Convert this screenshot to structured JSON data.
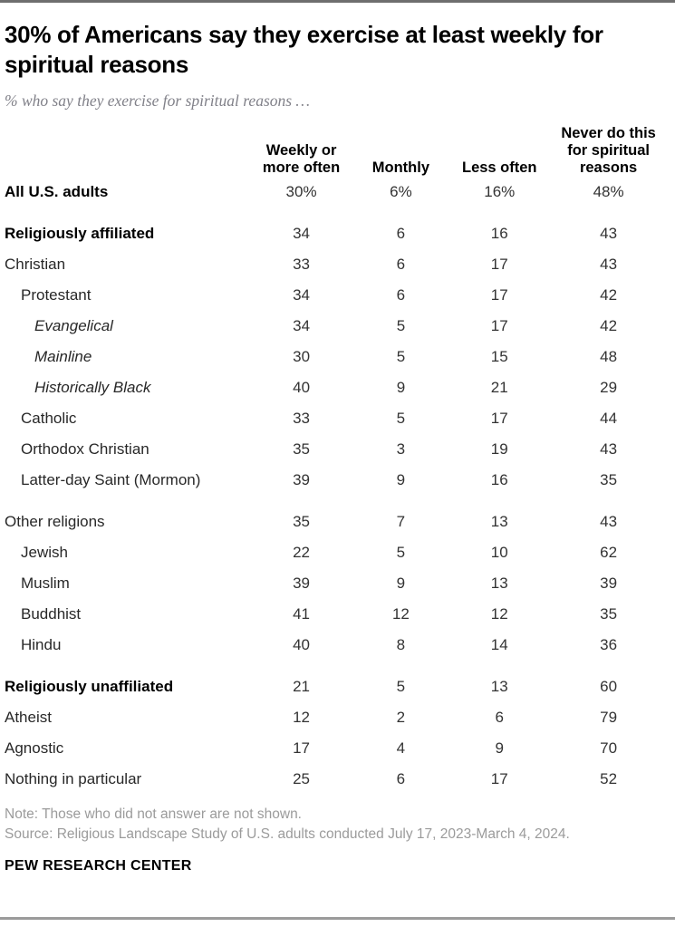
{
  "header": {
    "title": "30% of Americans say they exercise at least weekly for spiritual reasons",
    "subtitle": "% who say they exercise for spiritual reasons …"
  },
  "table": {
    "columns": [
      "Weekly or more often",
      "Monthly",
      "Less often",
      "Never do this for spiritual reasons"
    ],
    "rows": [
      {
        "label": "All U.S. adults",
        "style": "bold",
        "indent": 0,
        "gap_before": false,
        "values": [
          "30%",
          "6%",
          "16%",
          "48%"
        ]
      },
      {
        "label": "Religiously affiliated",
        "style": "bold",
        "indent": 0,
        "gap_before": true,
        "values": [
          "34",
          "6",
          "16",
          "43"
        ]
      },
      {
        "label": "Christian",
        "style": "normal",
        "indent": 0,
        "gap_before": false,
        "values": [
          "33",
          "6",
          "17",
          "43"
        ]
      },
      {
        "label": "Protestant",
        "style": "normal",
        "indent": 1,
        "gap_before": false,
        "values": [
          "34",
          "6",
          "17",
          "42"
        ]
      },
      {
        "label": "Evangelical",
        "style": "italic",
        "indent": 2,
        "gap_before": false,
        "values": [
          "34",
          "5",
          "17",
          "42"
        ]
      },
      {
        "label": "Mainline",
        "style": "italic",
        "indent": 2,
        "gap_before": false,
        "values": [
          "30",
          "5",
          "15",
          "48"
        ]
      },
      {
        "label": "Historically Black",
        "style": "italic",
        "indent": 2,
        "gap_before": false,
        "values": [
          "40",
          "9",
          "21",
          "29"
        ]
      },
      {
        "label": "Catholic",
        "style": "normal",
        "indent": 1,
        "gap_before": false,
        "values": [
          "33",
          "5",
          "17",
          "44"
        ]
      },
      {
        "label": "Orthodox Christian",
        "style": "normal",
        "indent": 1,
        "gap_before": false,
        "values": [
          "35",
          "3",
          "19",
          "43"
        ]
      },
      {
        "label": "Latter-day Saint (Mormon)",
        "style": "normal",
        "indent": 1,
        "gap_before": false,
        "values": [
          "39",
          "9",
          "16",
          "35"
        ]
      },
      {
        "label": "Other religions",
        "style": "normal",
        "indent": 0,
        "gap_before": true,
        "values": [
          "35",
          "7",
          "13",
          "43"
        ]
      },
      {
        "label": "Jewish",
        "style": "normal",
        "indent": 1,
        "gap_before": false,
        "values": [
          "22",
          "5",
          "10",
          "62"
        ]
      },
      {
        "label": "Muslim",
        "style": "normal",
        "indent": 1,
        "gap_before": false,
        "values": [
          "39",
          "9",
          "13",
          "39"
        ]
      },
      {
        "label": "Buddhist",
        "style": "normal",
        "indent": 1,
        "gap_before": false,
        "values": [
          "41",
          "12",
          "12",
          "35"
        ]
      },
      {
        "label": "Hindu",
        "style": "normal",
        "indent": 1,
        "gap_before": false,
        "values": [
          "40",
          "8",
          "14",
          "36"
        ]
      },
      {
        "label": "Religiously unaffiliated",
        "style": "bold",
        "indent": 0,
        "gap_before": true,
        "values": [
          "21",
          "5",
          "13",
          "60"
        ]
      },
      {
        "label": "Atheist",
        "style": "normal",
        "indent": 0,
        "gap_before": false,
        "values": [
          "12",
          "2",
          "6",
          "79"
        ]
      },
      {
        "label": "Agnostic",
        "style": "normal",
        "indent": 0,
        "gap_before": false,
        "values": [
          "17",
          "4",
          "9",
          "70"
        ]
      },
      {
        "label": "Nothing in particular",
        "style": "normal",
        "indent": 0,
        "gap_before": false,
        "values": [
          "25",
          "6",
          "17",
          "52"
        ]
      }
    ]
  },
  "footer": {
    "note": "Note: Those who did not answer are not shown.",
    "source": "Source: Religious Landscape Study of U.S. adults conducted July 17, 2023-March 4, 2024.",
    "brand": "PEW RESEARCH CENTER"
  },
  "colors": {
    "title_text": "#000000",
    "body_text": "#282828",
    "muted_text": "#9b9b9b",
    "subtitle_text": "#818189",
    "rule_top": "#6e6e6e",
    "rule_bottom": "#9b9b9b"
  },
  "chart_data": {
    "type": "table",
    "title": "30% of Americans say they exercise at least weekly for spiritual reasons",
    "subtitle": "% who say they exercise for spiritual reasons …",
    "unit": "%",
    "categories": [
      "All U.S. adults",
      "Religiously affiliated",
      "Christian",
      "Protestant",
      "Evangelical",
      "Mainline",
      "Historically Black",
      "Catholic",
      "Orthodox Christian",
      "Latter-day Saint (Mormon)",
      "Other religions",
      "Jewish",
      "Muslim",
      "Buddhist",
      "Hindu",
      "Religiously unaffiliated",
      "Atheist",
      "Agnostic",
      "Nothing in particular"
    ],
    "series": [
      {
        "name": "Weekly or more often",
        "values": [
          30,
          34,
          33,
          34,
          34,
          30,
          40,
          33,
          35,
          39,
          35,
          22,
          39,
          41,
          40,
          21,
          12,
          17,
          25
        ]
      },
      {
        "name": "Monthly",
        "values": [
          6,
          6,
          6,
          6,
          5,
          5,
          9,
          5,
          3,
          9,
          7,
          5,
          9,
          12,
          8,
          5,
          2,
          4,
          6
        ]
      },
      {
        "name": "Less often",
        "values": [
          16,
          16,
          17,
          17,
          17,
          15,
          21,
          17,
          19,
          16,
          13,
          10,
          13,
          12,
          14,
          13,
          6,
          9,
          17
        ]
      },
      {
        "name": "Never do this for spiritual reasons",
        "values": [
          48,
          43,
          43,
          42,
          42,
          48,
          29,
          44,
          43,
          35,
          43,
          62,
          39,
          35,
          36,
          60,
          79,
          70,
          52
        ]
      }
    ],
    "note": "Note: Those who did not answer are not shown.",
    "source": "Source: Religious Landscape Study of U.S. adults conducted July 17, 2023-March 4, 2024."
  }
}
